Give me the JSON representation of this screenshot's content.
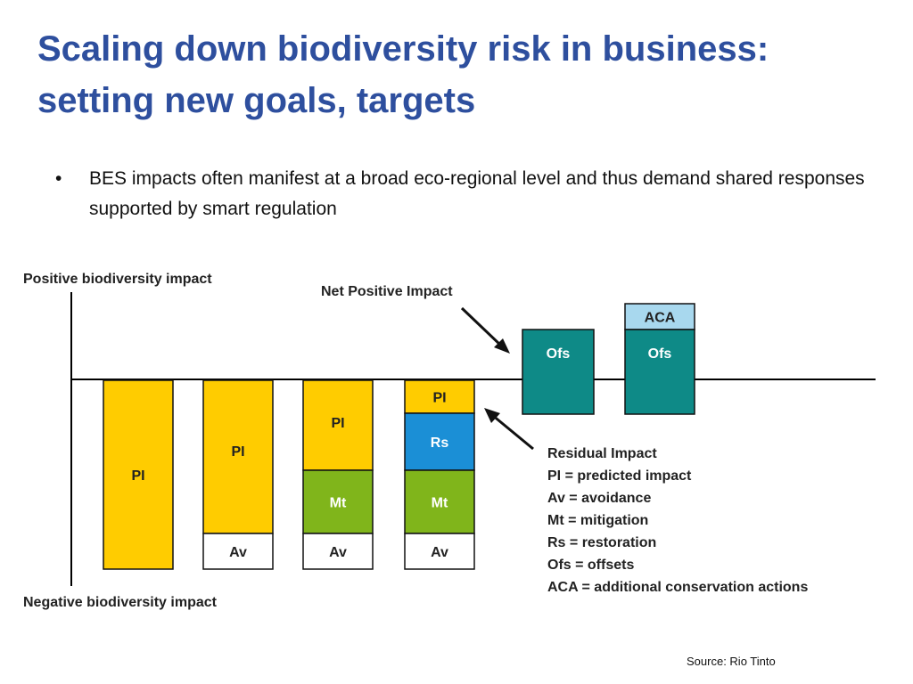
{
  "slide": {
    "title_line1": "Scaling down biodiversity risk in business:",
    "title_line2": "setting new goals, targets",
    "bullet_symbol": "•",
    "bullet_text": "BES impacts often manifest at a broad eco-regional level and thus demand shared responses supported by smart regulation",
    "source": "Source: Rio Tinto"
  },
  "diagram": {
    "axis_top_label": "Positive biodiversity impact",
    "axis_bottom_label": "Negative biodiversity impact",
    "net_positive_label": "Net Positive Impact",
    "colors": {
      "PI": "#ffcc00",
      "Av": "#ffffff",
      "Mt": "#80b51b",
      "Rs": "#1b8fd6",
      "Ofs": "#0e8a87",
      "ACA": "#a8d8ee"
    },
    "columns": [
      {
        "segments": [
          {
            "code": "PI",
            "label": "PI"
          }
        ]
      },
      {
        "segments": [
          {
            "code": "PI",
            "label": "PI"
          },
          {
            "code": "Av",
            "label": "Av"
          }
        ]
      },
      {
        "segments": [
          {
            "code": "PI",
            "label": "PI"
          },
          {
            "code": "Mt",
            "label": "Mt"
          },
          {
            "code": "Av",
            "label": "Av"
          }
        ]
      },
      {
        "segments": [
          {
            "code": "PI",
            "label": "PI"
          },
          {
            "code": "Rs",
            "label": "Rs"
          },
          {
            "code": "Mt",
            "label": "Mt"
          },
          {
            "code": "Av",
            "label": "Av"
          }
        ]
      },
      {
        "segments": [
          {
            "code": "Ofs",
            "label": "Ofs"
          }
        ]
      },
      {
        "segments": [
          {
            "code": "ACA",
            "label": "ACA"
          },
          {
            "code": "Ofs",
            "label": "Ofs"
          }
        ]
      }
    ],
    "legend": {
      "title": "Residual Impact",
      "items": [
        "PI = predicted impact",
        "Av = avoidance",
        "Mt = mitigation",
        "Rs = restoration",
        "Ofs = offsets",
        "ACA = additional conservation actions"
      ]
    }
  }
}
